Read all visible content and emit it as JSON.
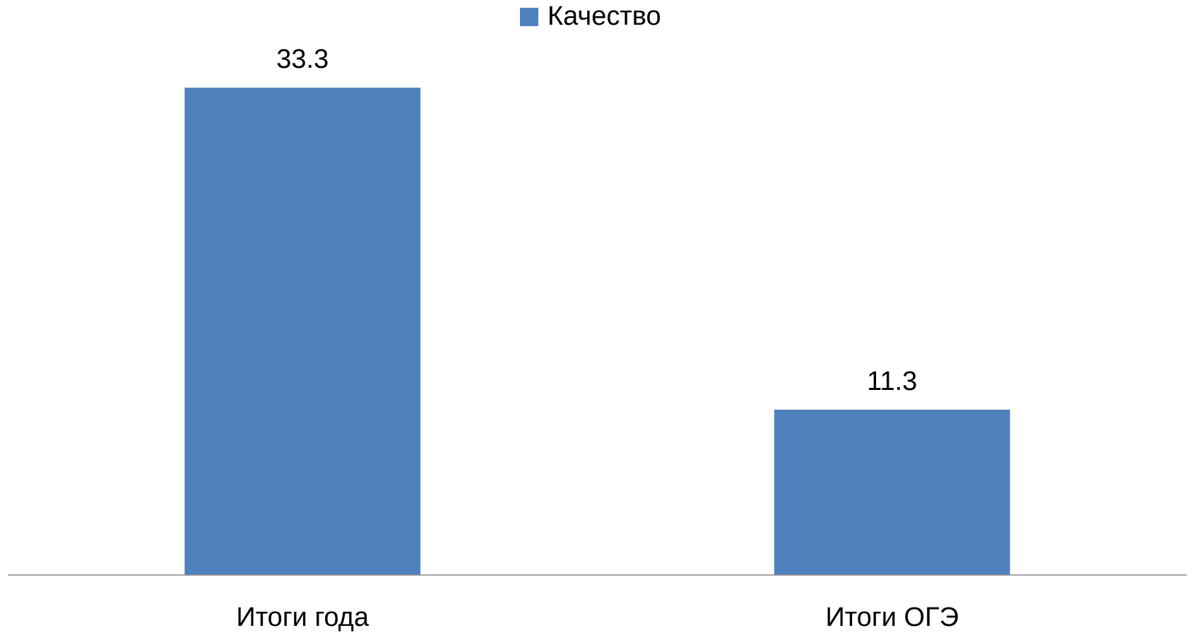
{
  "chart_data": {
    "type": "bar",
    "categories": [
      "Итоги года",
      "Итоги ОГЭ"
    ],
    "series": [
      {
        "name": "Качество",
        "color": "#4f81bd",
        "values": [
          33.3,
          11.3
        ]
      }
    ],
    "ylim": [
      0,
      35
    ],
    "legend": "top"
  }
}
